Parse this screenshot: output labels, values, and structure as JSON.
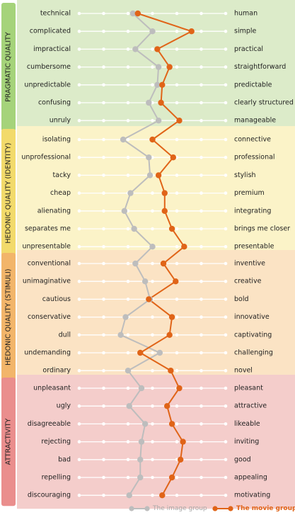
{
  "chart_data": {
    "type": "line",
    "scale_points": 7,
    "colors": {
      "image_group": "#bdbdbd",
      "movie_group": "#e06418",
      "grid_dot": "#ffffff"
    },
    "legend": {
      "placement": "bottom-right",
      "entries": [
        {
          "name": "The image group",
          "color": "#bdbdbd"
        },
        {
          "name": "The movie group",
          "color": "#e06418"
        }
      ]
    },
    "sections": [
      {
        "title": "PRAGMATIC QUALITY",
        "color": "#dcebc9",
        "tab_color": "#a5d37a",
        "items": [
          {
            "left": "technical",
            "right": "human",
            "image": 3.2,
            "movie": 3.4
          },
          {
            "left": "complicated",
            "right": "simple",
            "image": 4.0,
            "movie": 5.6
          },
          {
            "left": "impractical",
            "right": "practical",
            "image": 3.3,
            "movie": 4.2
          },
          {
            "left": "cumbersome",
            "right": "straightforward",
            "image": 4.25,
            "movie": 4.7
          },
          {
            "left": "unpredictable",
            "right": "predictable",
            "image": 4.2,
            "movie": 4.4
          },
          {
            "left": "confusing",
            "right": "clearly structured",
            "image": 3.85,
            "movie": 4.35
          },
          {
            "left": "unruly",
            "right": "manageable",
            "image": 4.25,
            "movie": 5.1
          }
        ]
      },
      {
        "title": "HEDONIC QUALITY (IDENTITY)",
        "color": "#fbf3c8",
        "tab_color": "#f2da6b",
        "items": [
          {
            "left": "isolating",
            "right": "connective",
            "image": 2.8,
            "movie": 4.0
          },
          {
            "left": "unprofessional",
            "right": "professional",
            "image": 3.85,
            "movie": 4.85
          },
          {
            "left": "tacky",
            "right": "stylish",
            "image": 3.9,
            "movie": 4.25
          },
          {
            "left": "cheap",
            "right": "premium",
            "image": 3.1,
            "movie": 4.5
          },
          {
            "left": "alienating",
            "right": "integrating",
            "image": 2.85,
            "movie": 4.5
          },
          {
            "left": "separates me",
            "right": "brings me closer",
            "image": 3.25,
            "movie": 4.8
          },
          {
            "left": "unpresentable",
            "right": "presentable",
            "image": 4.0,
            "movie": 5.3
          }
        ]
      },
      {
        "title": "HEDONIC QUALITY (STIMULI)",
        "color": "#fbe3c4",
        "tab_color": "#f2b56a",
        "items": [
          {
            "left": "conventional",
            "right": "inventive",
            "image": 3.3,
            "movie": 4.45
          },
          {
            "left": "unimaginative",
            "right": "creative",
            "image": 3.7,
            "movie": 4.95
          },
          {
            "left": "cautious",
            "right": "bold",
            "image": 3.9,
            "movie": 3.85
          },
          {
            "left": "conservative",
            "right": "innovative",
            "image": 2.9,
            "movie": 4.8
          },
          {
            "left": "dull",
            "right": "captivating",
            "image": 2.7,
            "movie": 4.7
          },
          {
            "left": "undemanding",
            "right": "challenging",
            "image": 4.3,
            "movie": 3.5
          },
          {
            "left": "ordinary",
            "right": "novel",
            "image": 3.0,
            "movie": 4.75
          }
        ]
      },
      {
        "title": "ATTRACTIVITY",
        "color": "#f4cdcb",
        "tab_color": "#ea8e8d",
        "items": [
          {
            "left": "unpleasant",
            "right": "pleasant",
            "image": 3.55,
            "movie": 5.1
          },
          {
            "left": "ugly",
            "right": "attractive",
            "image": 3.05,
            "movie": 4.6
          },
          {
            "left": "disagreeable",
            "right": "likeable",
            "image": 3.7,
            "movie": 4.8
          },
          {
            "left": "rejecting",
            "right": "inviting",
            "image": 3.55,
            "movie": 5.25
          },
          {
            "left": "bad",
            "right": "good",
            "image": 3.5,
            "movie": 5.15
          },
          {
            "left": "repelling",
            "right": "appealing",
            "image": 3.5,
            "movie": 4.8
          },
          {
            "left": "discouraging",
            "right": "motivating",
            "image": 3.05,
            "movie": 4.4
          }
        ]
      }
    ]
  }
}
